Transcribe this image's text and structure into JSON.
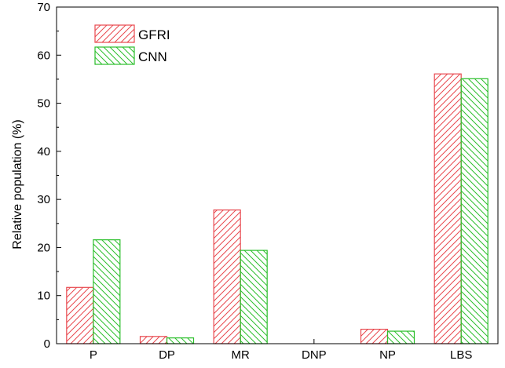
{
  "chart_data": {
    "type": "bar",
    "title": "",
    "xlabel": "",
    "ylabel": "Relative population (%)",
    "ylim": [
      0,
      70
    ],
    "yticks": [
      0,
      10,
      20,
      30,
      40,
      50,
      60,
      70
    ],
    "grid": false,
    "legend_position": "top-left",
    "categories": [
      "P",
      "DP",
      "MR",
      "DNP",
      "NP",
      "LBS"
    ],
    "series": [
      {
        "name": "GFRI",
        "values": [
          11.7,
          1.5,
          27.8,
          0,
          3.0,
          56.1
        ],
        "color": "#e8484e",
        "hatch": "forward-diagonal"
      },
      {
        "name": "CNN",
        "values": [
          21.6,
          1.2,
          19.4,
          0,
          2.6,
          55.1
        ],
        "color": "#2bbf2b",
        "hatch": "backward-diagonal"
      }
    ]
  }
}
